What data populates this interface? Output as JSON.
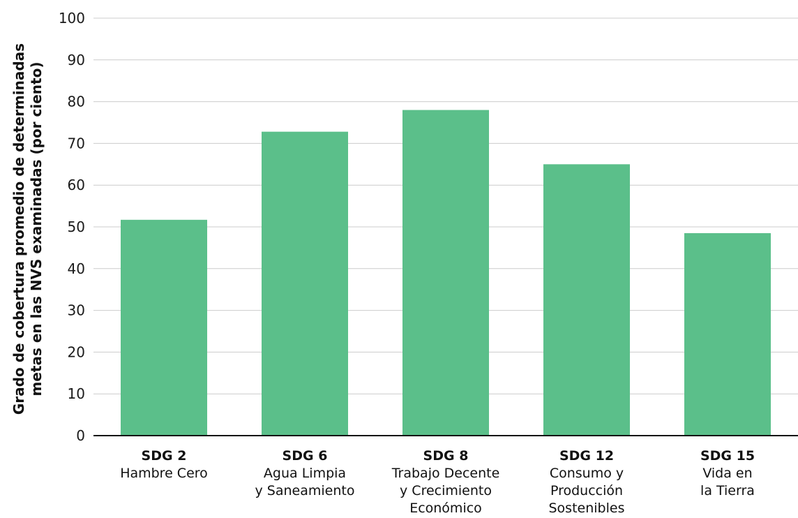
{
  "chart_data": {
    "type": "bar",
    "categories": [
      {
        "code": "SDG 2",
        "lines": [
          "Hambre Cero"
        ]
      },
      {
        "code": "SDG 6",
        "lines": [
          "Agua Limpia",
          "y Saneamiento"
        ]
      },
      {
        "code": "SDG 8",
        "lines": [
          "Trabajo Decente",
          "y Crecimiento",
          "Económico"
        ]
      },
      {
        "code": "SDG 12",
        "lines": [
          "Consumo y",
          "Producción",
          "Sostenibles"
        ]
      },
      {
        "code": "SDG 15",
        "lines": [
          "Vida en",
          "la Tierra"
        ]
      }
    ],
    "values": [
      51.7,
      72.8,
      78.0,
      65.0,
      48.5
    ],
    "ylabel_lines": [
      "Grado de cobertura promedio de determinadas",
      "metas en las NVS examinadas (por ciento)"
    ],
    "xlabel": "",
    "ylim": [
      0,
      100
    ],
    "yticks": [
      0,
      10,
      20,
      30,
      40,
      50,
      60,
      70,
      80,
      90,
      100
    ],
    "grid": true,
    "bar_color": "#5bbf8a",
    "grid_color": "#cccccc",
    "axis_color": "#111111"
  }
}
